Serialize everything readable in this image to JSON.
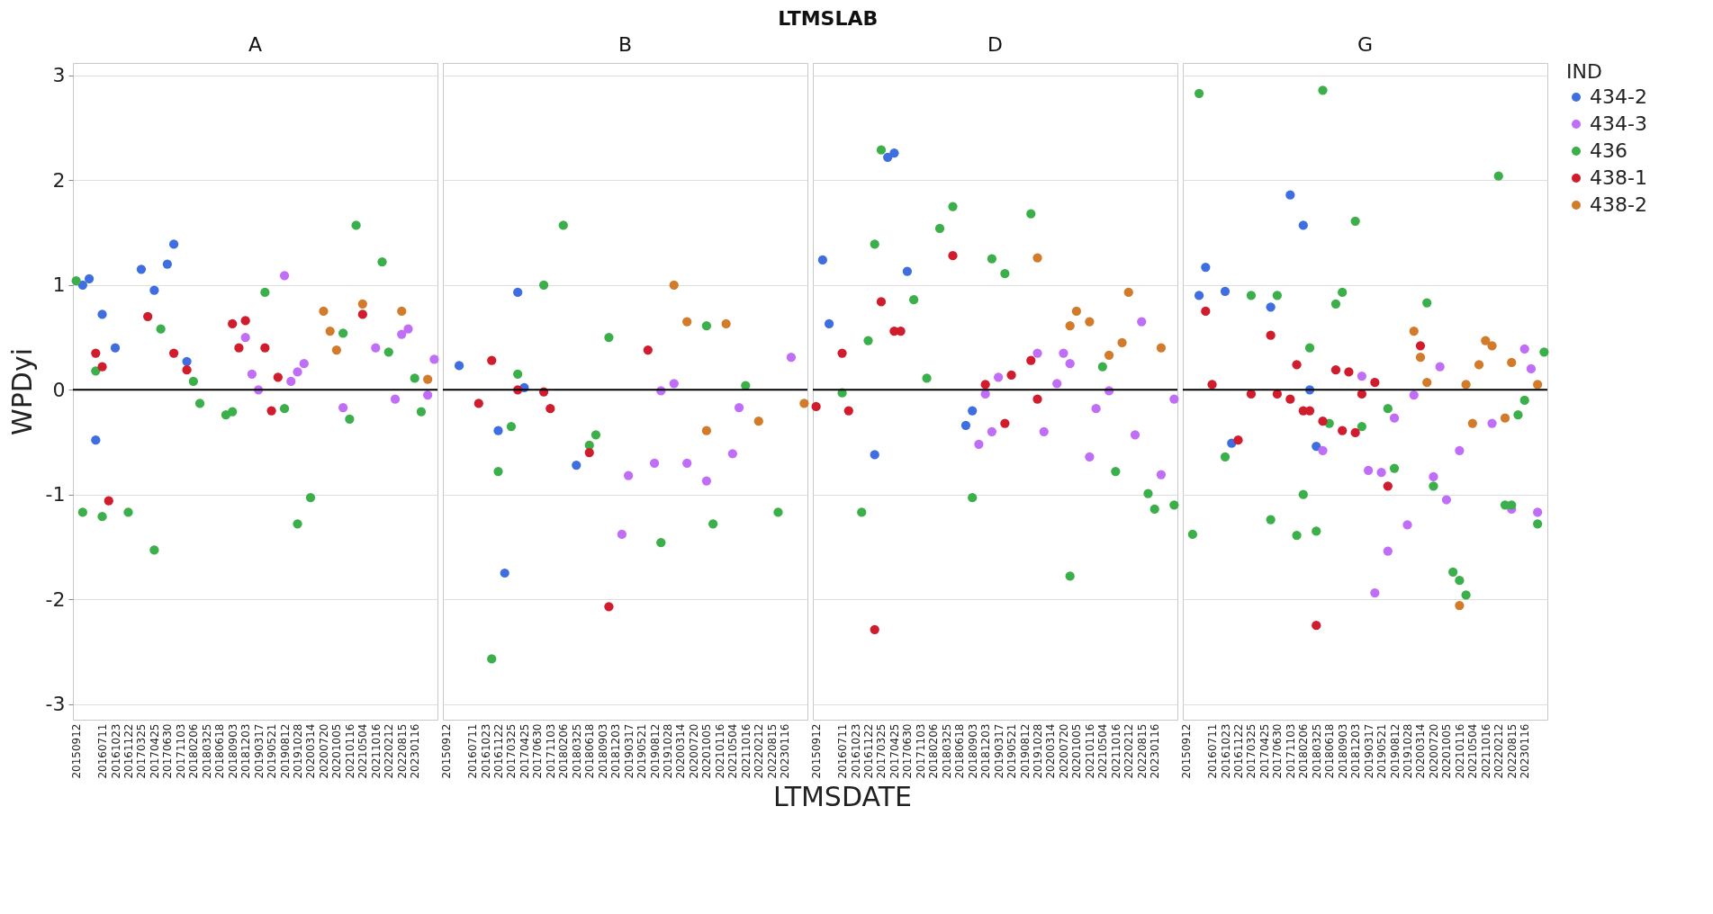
{
  "chart_data": [
    {
      "type": "scatter",
      "title": "A",
      "ylabel": "WPDyi",
      "annotations": [
        "LTMSLAB",
        "LTMSDATE"
      ],
      "legend": "top right",
      "legend_title": "IND",
      "marker": "circle",
      "grid": "y",
      "ylim": [
        -3.15,
        3.12
      ],
      "yticks": [
        -3,
        -2,
        -1,
        0,
        1,
        2,
        3
      ],
      "ref_lines": [
        {
          "axis": "y",
          "value": 0,
          "color": "#000000"
        }
      ],
      "categories": [
        "20150912",
        null,
        null,
        null,
        "20160711",
        null,
        "20161023",
        null,
        "20161122",
        null,
        "20170325",
        null,
        "20170425",
        null,
        "20170630",
        null,
        "20171103",
        null,
        "20180206",
        null,
        "20180325",
        null,
        "20180618",
        null,
        "20180903",
        null,
        "20181203",
        null,
        "20190317",
        null,
        "20190521",
        null,
        "20190812",
        null,
        "20191028",
        null,
        "20200314",
        null,
        "20200720",
        null,
        "20201005",
        null,
        "20210116",
        null,
        "20210504",
        null,
        "20211016",
        null,
        "20220212",
        null,
        "20220815",
        null,
        "20230116",
        null,
        null,
        null
      ],
      "series": [
        {
          "name": "434-2",
          "color": "#3f6ee0",
          "values": [
            null,
            1.0,
            1.06,
            -0.48,
            0.72,
            null,
            0.4,
            null,
            null,
            null,
            1.15,
            null,
            0.95,
            null,
            1.2,
            1.39,
            null,
            0.27,
            null,
            null,
            null,
            null,
            null,
            null,
            null,
            null,
            null,
            null,
            null,
            null,
            null,
            null,
            null,
            null,
            null,
            null,
            null,
            null,
            null,
            null,
            null,
            null,
            null,
            null,
            null,
            null,
            null,
            null,
            null,
            null,
            null,
            null,
            null,
            null,
            null,
            null
          ]
        },
        {
          "name": "434-3",
          "color": "#c06ef8",
          "values": [
            null,
            null,
            null,
            null,
            null,
            null,
            null,
            null,
            null,
            null,
            null,
            null,
            null,
            null,
            null,
            null,
            null,
            null,
            null,
            null,
            null,
            null,
            null,
            null,
            null,
            null,
            0.5,
            0.15,
            0.0,
            null,
            null,
            null,
            1.09,
            0.08,
            0.17,
            0.25,
            null,
            null,
            null,
            null,
            null,
            -0.17,
            null,
            null,
            null,
            null,
            0.4,
            null,
            null,
            -0.09,
            0.53,
            0.58,
            null,
            null,
            -0.05,
            0.29
          ]
        },
        {
          "name": "436",
          "color": "#3bb04a",
          "values": [
            1.04,
            -1.17,
            null,
            0.18,
            -1.21,
            null,
            null,
            null,
            -1.17,
            null,
            null,
            null,
            -1.53,
            0.58,
            null,
            null,
            null,
            null,
            0.08,
            -0.13,
            null,
            null,
            null,
            -0.24,
            -0.21,
            null,
            null,
            null,
            null,
            0.93,
            null,
            null,
            -0.18,
            null,
            -1.28,
            null,
            -1.03,
            null,
            null,
            null,
            null,
            0.54,
            -0.28,
            1.57,
            null,
            null,
            null,
            1.22,
            0.36,
            null,
            null,
            null,
            0.11,
            -0.21,
            null,
            null
          ]
        },
        {
          "name": "438-1",
          "color": "#d01c2c",
          "values": [
            null,
            null,
            null,
            0.35,
            0.22,
            -1.06,
            null,
            null,
            null,
            null,
            null,
            0.7,
            null,
            null,
            null,
            0.35,
            null,
            0.19,
            null,
            null,
            null,
            null,
            null,
            null,
            0.63,
            0.4,
            0.66,
            null,
            null,
            0.4,
            -0.2,
            0.12,
            null,
            null,
            null,
            null,
            null,
            null,
            null,
            null,
            null,
            null,
            null,
            null,
            0.72,
            null,
            null,
            null,
            null,
            null,
            null,
            null,
            null,
            null,
            null,
            null
          ]
        },
        {
          "name": "438-2",
          "color": "#d27b2a",
          "values": [
            null,
            null,
            null,
            null,
            null,
            null,
            null,
            null,
            null,
            null,
            null,
            null,
            null,
            null,
            null,
            null,
            null,
            null,
            null,
            null,
            null,
            null,
            null,
            null,
            null,
            null,
            null,
            null,
            null,
            null,
            null,
            null,
            null,
            null,
            null,
            null,
            null,
            null,
            0.75,
            0.56,
            0.38,
            null,
            null,
            null,
            0.82,
            null,
            null,
            null,
            null,
            null,
            0.75,
            null,
            null,
            null,
            0.1,
            null
          ]
        }
      ]
    },
    {
      "type": "scatter",
      "title": "B",
      "marker": "circle",
      "grid": "y",
      "tick_labels": "x",
      "ylim": [
        -3.15,
        3.12
      ],
      "yticks": [
        -3,
        -2,
        -1,
        0,
        1,
        2,
        3
      ],
      "ref_lines": [
        {
          "axis": "y",
          "value": 0,
          "color": "#000000"
        }
      ],
      "categories": [
        "20150912",
        null,
        null,
        null,
        "20160711",
        null,
        "20161023",
        null,
        "20161122",
        null,
        "20170325",
        null,
        "20170425",
        null,
        "20170630",
        null,
        "20171103",
        null,
        "20180206",
        null,
        "20180325",
        null,
        "20180618",
        null,
        "20180903",
        null,
        "20181203",
        null,
        "20190317",
        null,
        "20190521",
        null,
        "20190812",
        null,
        "20191028",
        null,
        "20200314",
        null,
        "20200720",
        null,
        "20201005",
        null,
        "20210116",
        null,
        "20210504",
        null,
        "20211016",
        null,
        "20220212",
        null,
        "20220815",
        null,
        "20230116",
        null,
        null,
        null
      ],
      "series": [
        {
          "name": "434-2",
          "color": "#3f6ee0",
          "values": [
            null,
            null,
            0.23,
            null,
            null,
            null,
            null,
            null,
            -0.39,
            -1.75,
            null,
            0.93,
            0.02,
            null,
            null,
            null,
            null,
            null,
            null,
            null,
            -0.72,
            null,
            null,
            null,
            null,
            null,
            null,
            null,
            null,
            null,
            null,
            null,
            null,
            null,
            null,
            null,
            null,
            null,
            null,
            null,
            null,
            null,
            null,
            null,
            null,
            null,
            null,
            null,
            null,
            null,
            null,
            null,
            null,
            null,
            null,
            null
          ]
        },
        {
          "name": "434-3",
          "color": "#c06ef8",
          "values": [
            null,
            null,
            null,
            null,
            null,
            null,
            null,
            null,
            null,
            null,
            null,
            null,
            null,
            null,
            null,
            null,
            null,
            null,
            null,
            null,
            null,
            null,
            null,
            null,
            null,
            null,
            null,
            -1.38,
            -0.82,
            null,
            null,
            null,
            -0.7,
            -0.01,
            null,
            0.06,
            null,
            -0.7,
            null,
            null,
            -0.87,
            null,
            null,
            null,
            -0.61,
            -0.17,
            null,
            null,
            null,
            null,
            null,
            null,
            null,
            0.31,
            null,
            null
          ]
        },
        {
          "name": "436",
          "color": "#3bb04a",
          "values": [
            null,
            null,
            null,
            null,
            null,
            null,
            null,
            -2.57,
            -0.78,
            null,
            -0.35,
            0.15,
            null,
            null,
            null,
            1.0,
            null,
            null,
            1.57,
            null,
            null,
            null,
            -0.53,
            -0.43,
            null,
            0.5,
            null,
            null,
            null,
            null,
            null,
            null,
            null,
            -1.46,
            null,
            null,
            null,
            null,
            null,
            null,
            0.61,
            -1.28,
            null,
            null,
            null,
            null,
            0.04,
            null,
            null,
            null,
            null,
            -1.17,
            null,
            null,
            null,
            null
          ]
        },
        {
          "name": "438-1",
          "color": "#d01c2c",
          "values": [
            null,
            null,
            null,
            null,
            null,
            -0.13,
            null,
            0.28,
            null,
            null,
            null,
            0.0,
            null,
            null,
            null,
            -0.02,
            -0.18,
            null,
            null,
            null,
            null,
            null,
            -0.6,
            null,
            null,
            -2.07,
            null,
            null,
            null,
            null,
            null,
            0.38,
            null,
            null,
            null,
            null,
            null,
            null,
            null,
            null,
            null,
            null,
            null,
            null,
            null,
            null,
            null,
            null,
            null,
            null,
            null,
            null,
            null,
            null,
            null,
            null
          ]
        },
        {
          "name": "438-2",
          "color": "#d27b2a",
          "values": [
            null,
            null,
            null,
            null,
            null,
            null,
            null,
            null,
            null,
            null,
            null,
            null,
            null,
            null,
            null,
            null,
            null,
            null,
            null,
            null,
            null,
            null,
            null,
            null,
            null,
            null,
            null,
            null,
            null,
            null,
            null,
            null,
            null,
            null,
            null,
            1.0,
            null,
            0.65,
            null,
            null,
            -0.39,
            null,
            null,
            0.63,
            null,
            null,
            null,
            null,
            -0.3,
            null,
            null,
            null,
            null,
            null,
            null,
            -0.13
          ]
        }
      ]
    },
    {
      "type": "scatter",
      "title": "D",
      "marker": "circle",
      "grid": "y",
      "tick_labels": "x",
      "ylim": [
        -3.15,
        3.12
      ],
      "yticks": [
        -3,
        -2,
        -1,
        0,
        1,
        2,
        3
      ],
      "ref_lines": [
        {
          "axis": "y",
          "value": 0,
          "color": "#000000"
        }
      ],
      "categories": [
        "20150912",
        null,
        null,
        null,
        "20160711",
        null,
        "20161023",
        null,
        "20161122",
        null,
        "20170325",
        null,
        "20170425",
        null,
        "20170630",
        null,
        "20171103",
        null,
        "20180206",
        null,
        "20180325",
        null,
        "20180618",
        null,
        "20180903",
        null,
        "20181203",
        null,
        "20190317",
        null,
        "20190521",
        null,
        "20190812",
        null,
        "20191028",
        null,
        "20200314",
        null,
        "20200720",
        null,
        "20201005",
        null,
        "20210116",
        null,
        "20210504",
        null,
        "20211016",
        null,
        "20220212",
        null,
        "20220815",
        null,
        "20230116",
        null,
        null,
        null
      ],
      "series": [
        {
          "name": "434-2",
          "color": "#3f6ee0",
          "values": [
            null,
            1.24,
            0.63,
            null,
            null,
            null,
            null,
            null,
            null,
            -0.62,
            null,
            2.22,
            2.26,
            null,
            1.13,
            null,
            null,
            null,
            null,
            null,
            null,
            null,
            null,
            -0.34,
            -0.2,
            null,
            null,
            null,
            null,
            null,
            null,
            null,
            null,
            null,
            null,
            null,
            null,
            null,
            null,
            null,
            null,
            null,
            null,
            null,
            null,
            null,
            null,
            null,
            null,
            null,
            null,
            null,
            null,
            null,
            null,
            null
          ]
        },
        {
          "name": "434-3",
          "color": "#c06ef8",
          "values": [
            null,
            null,
            null,
            null,
            null,
            null,
            null,
            null,
            null,
            null,
            null,
            null,
            null,
            null,
            null,
            null,
            null,
            null,
            null,
            null,
            null,
            null,
            null,
            null,
            null,
            -0.52,
            -0.04,
            -0.4,
            0.12,
            null,
            null,
            null,
            null,
            null,
            0.35,
            -0.4,
            null,
            0.06,
            0.35,
            0.25,
            null,
            null,
            -0.64,
            -0.18,
            null,
            -0.01,
            null,
            null,
            null,
            -0.43,
            0.65,
            null,
            null,
            -0.81,
            null,
            -0.09
          ]
        },
        {
          "name": "436",
          "color": "#3bb04a",
          "values": [
            null,
            null,
            null,
            null,
            -0.03,
            null,
            null,
            -1.17,
            0.47,
            1.39,
            2.29,
            null,
            null,
            null,
            null,
            0.86,
            null,
            0.11,
            null,
            1.54,
            null,
            1.75,
            null,
            null,
            -1.03,
            null,
            null,
            1.25,
            null,
            1.11,
            null,
            null,
            null,
            1.68,
            null,
            null,
            null,
            null,
            null,
            -1.78,
            null,
            null,
            null,
            null,
            0.22,
            null,
            -0.78,
            null,
            null,
            null,
            null,
            -0.99,
            -1.14,
            null,
            null,
            -1.1
          ]
        },
        {
          "name": "438-1",
          "color": "#d01c2c",
          "values": [
            -0.16,
            null,
            null,
            null,
            0.35,
            -0.2,
            null,
            null,
            null,
            -2.29,
            0.84,
            null,
            0.56,
            0.56,
            null,
            null,
            null,
            null,
            null,
            null,
            null,
            1.28,
            null,
            null,
            null,
            null,
            0.05,
            null,
            null,
            -0.32,
            0.14,
            null,
            null,
            0.28,
            -0.09,
            null,
            null,
            null,
            null,
            null,
            null,
            null,
            null,
            null,
            null,
            null,
            null,
            null,
            null,
            null,
            null,
            null,
            null,
            null,
            null,
            null
          ]
        },
        {
          "name": "438-2",
          "color": "#d27b2a",
          "values": [
            null,
            null,
            null,
            null,
            null,
            null,
            null,
            null,
            null,
            null,
            null,
            null,
            null,
            null,
            null,
            null,
            null,
            null,
            null,
            null,
            null,
            null,
            null,
            null,
            null,
            null,
            null,
            null,
            null,
            null,
            null,
            null,
            null,
            null,
            1.26,
            null,
            null,
            null,
            null,
            0.61,
            0.75,
            null,
            0.65,
            null,
            null,
            0.33,
            null,
            0.45,
            0.93,
            null,
            null,
            null,
            null,
            0.4,
            null,
            null
          ]
        }
      ]
    },
    {
      "type": "scatter",
      "title": "G",
      "marker": "circle",
      "grid": "y",
      "tick_labels": "x",
      "ylim": [
        -3.15,
        3.12
      ],
      "yticks": [
        -3,
        -2,
        -1,
        0,
        1,
        2,
        3
      ],
      "ref_lines": [
        {
          "axis": "y",
          "value": 0,
          "color": "#000000"
        }
      ],
      "categories": [
        "20150912",
        null,
        null,
        null,
        "20160711",
        null,
        "20161023",
        null,
        "20161122",
        null,
        "20170325",
        null,
        "20170425",
        null,
        "20170630",
        null,
        "20171103",
        null,
        "20180206",
        null,
        "20180325",
        null,
        "20180618",
        null,
        "20180903",
        null,
        "20181203",
        null,
        "20190317",
        null,
        "20190521",
        null,
        "20190812",
        null,
        "20191028",
        null,
        "20200314",
        null,
        "20200720",
        null,
        "20201005",
        null,
        "20210116",
        null,
        "20210504",
        null,
        "20211016",
        null,
        "20220212",
        null,
        "20220815",
        null,
        "20230116",
        null,
        null,
        null
      ],
      "series": [
        {
          "name": "434-2",
          "color": "#3f6ee0",
          "values": [
            null,
            null,
            0.9,
            1.17,
            null,
            null,
            0.94,
            -0.51,
            null,
            null,
            null,
            null,
            null,
            0.79,
            null,
            null,
            1.86,
            null,
            1.57,
            0.0,
            -0.54,
            null,
            null,
            null,
            null,
            null,
            null,
            null,
            null,
            null,
            null,
            null,
            null,
            null,
            null,
            null,
            null,
            null,
            null,
            null,
            null,
            null,
            null,
            null,
            null,
            null,
            null,
            null,
            null,
            null,
            null,
            null,
            null,
            null,
            null,
            null
          ]
        },
        {
          "name": "434-3",
          "color": "#c06ef8",
          "values": [
            null,
            null,
            null,
            null,
            null,
            null,
            null,
            null,
            null,
            null,
            null,
            null,
            null,
            null,
            null,
            null,
            null,
            null,
            null,
            null,
            null,
            -0.58,
            null,
            null,
            null,
            null,
            null,
            0.13,
            -0.77,
            -1.94,
            -0.79,
            -1.54,
            -0.27,
            null,
            -1.29,
            -0.05,
            null,
            null,
            -0.83,
            0.22,
            -1.05,
            null,
            -0.58,
            null,
            null,
            null,
            null,
            -0.32,
            null,
            null,
            -1.14,
            null,
            0.39,
            0.2,
            -1.17,
            null
          ]
        },
        {
          "name": "436",
          "color": "#3bb04a",
          "values": [
            null,
            -1.38,
            2.83,
            null,
            null,
            null,
            -0.64,
            null,
            null,
            null,
            0.9,
            null,
            null,
            -1.24,
            0.9,
            null,
            null,
            -1.39,
            -1.0,
            0.4,
            -1.35,
            2.86,
            -0.32,
            0.82,
            0.93,
            null,
            1.61,
            -0.35,
            null,
            null,
            null,
            -0.18,
            -0.75,
            null,
            null,
            null,
            null,
            0.83,
            -0.92,
            null,
            null,
            -1.74,
            -1.82,
            -1.96,
            null,
            null,
            null,
            null,
            2.04,
            -1.1,
            -1.1,
            -0.24,
            -0.1,
            null,
            -1.28,
            0.36
          ]
        },
        {
          "name": "438-1",
          "color": "#d01c2c",
          "values": [
            null,
            null,
            null,
            0.75,
            0.05,
            null,
            null,
            null,
            -0.48,
            null,
            -0.04,
            null,
            null,
            0.52,
            -0.04,
            null,
            -0.09,
            0.24,
            -0.2,
            -0.2,
            -2.25,
            -0.3,
            null,
            0.19,
            -0.39,
            0.17,
            -0.41,
            -0.04,
            null,
            0.07,
            null,
            -0.92,
            null,
            null,
            null,
            null,
            0.42,
            null,
            null,
            null,
            null,
            null,
            null,
            null,
            null,
            null,
            null,
            null,
            null,
            null,
            null,
            null,
            null,
            null,
            null,
            null
          ]
        },
        {
          "name": "438-2",
          "color": "#d27b2a",
          "values": [
            null,
            null,
            null,
            null,
            null,
            null,
            null,
            null,
            null,
            null,
            null,
            null,
            null,
            null,
            null,
            null,
            null,
            null,
            null,
            null,
            null,
            null,
            null,
            null,
            null,
            null,
            null,
            null,
            null,
            null,
            null,
            null,
            null,
            null,
            null,
            0.56,
            0.31,
            0.07,
            null,
            null,
            null,
            null,
            -2.06,
            0.05,
            -0.32,
            0.24,
            0.47,
            0.42,
            null,
            -0.27,
            0.26,
            null,
            null,
            null,
            0.05,
            null
          ]
        }
      ]
    }
  ]
}
